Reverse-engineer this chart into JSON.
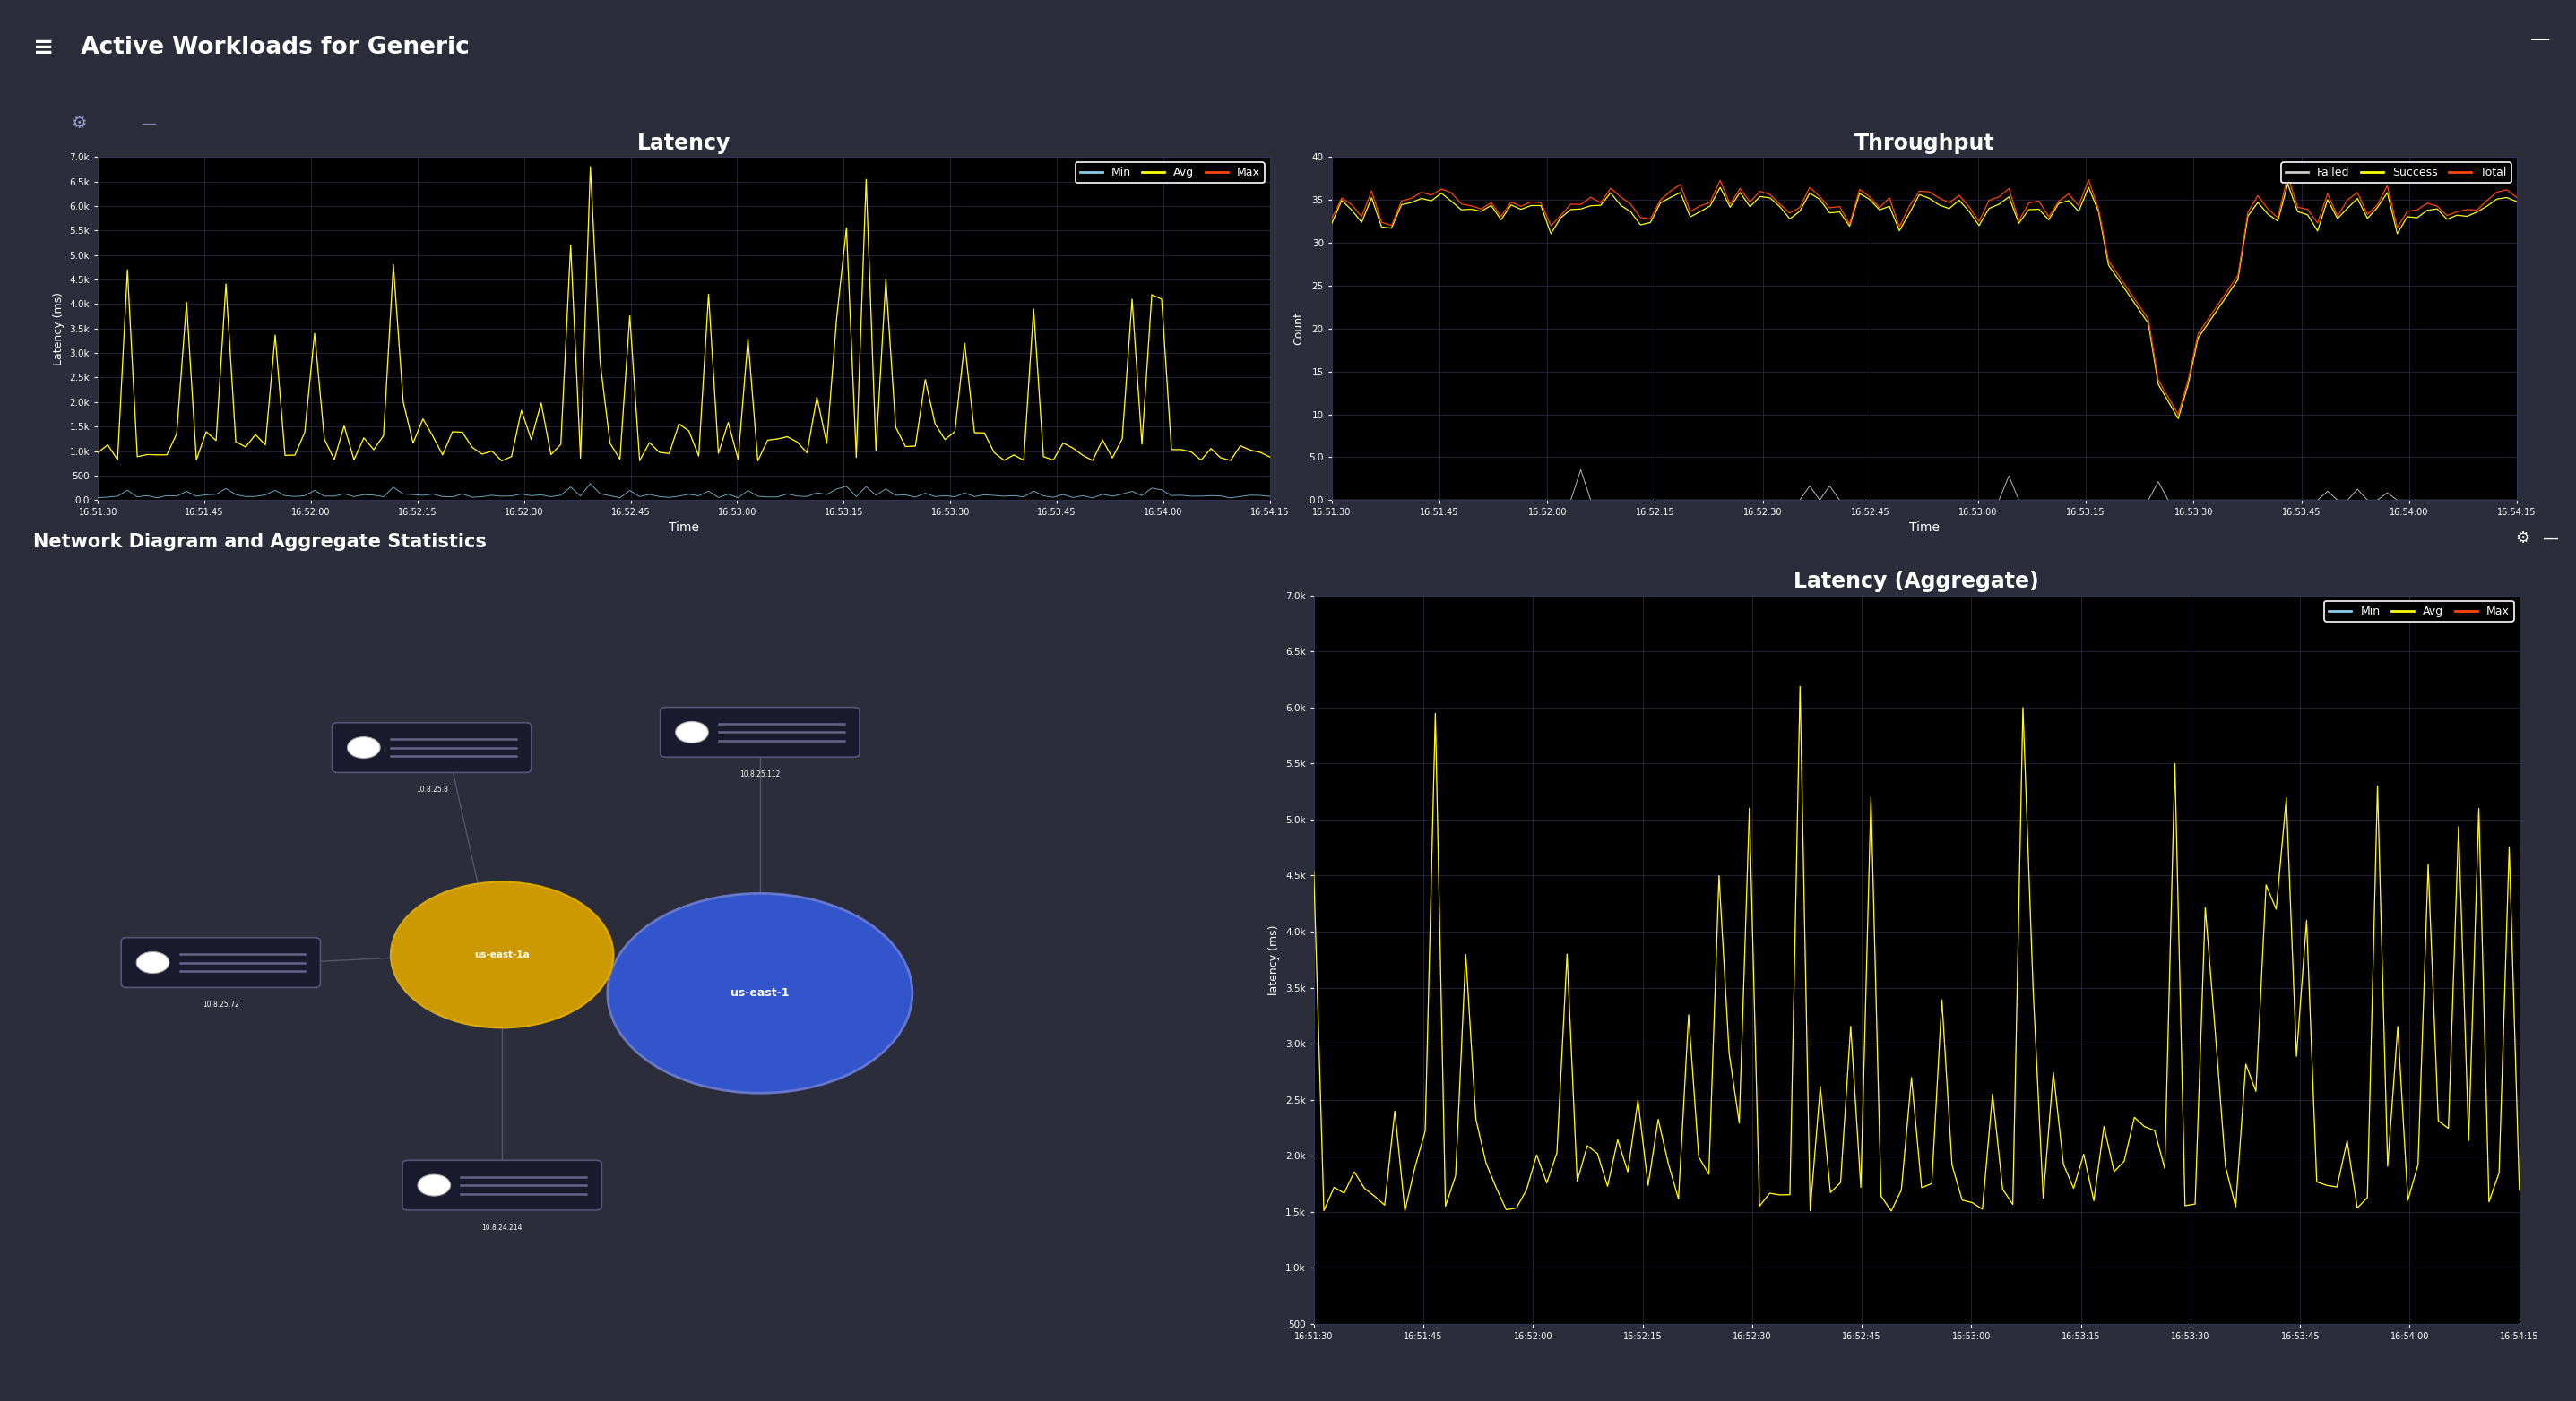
{
  "title_top": "Active Workloads for Generic",
  "title_bottom": "Network Diagram and Aggregate Statistics",
  "bg_outer": "#2b2d3b",
  "bg_header": "#1c1cb8",
  "bg_panel": "#23263a",
  "bg_chart": "#000000",
  "bg_blue_bar": "#2020bb",
  "bg_net": "#181828",
  "latency_title": "Latency",
  "latency_ylabel": "Latency (ms)",
  "latency_xlabel": "Time",
  "latency_yticks": [
    "0.0",
    "500",
    "1.0k",
    "1.5k",
    "2.0k",
    "2.5k",
    "3.0k",
    "3.5k",
    "4.0k",
    "4.5k",
    "5.0k",
    "5.5k",
    "6.0k",
    "6.5k",
    "7.0k"
  ],
  "latency_ytick_vals": [
    0,
    500,
    1000,
    1500,
    2000,
    2500,
    3000,
    3500,
    4000,
    4500,
    5000,
    5500,
    6000,
    6500,
    7000
  ],
  "latency_xticks": [
    "16:51:30",
    "16:51:45",
    "16:52:00",
    "16:52:15",
    "16:52:30",
    "16:52:45",
    "16:53:00",
    "16:53:15",
    "16:53:30",
    "16:53:45",
    "16:54:00",
    "16:54:15"
  ],
  "throughput_title": "Throughput",
  "throughput_ylabel": "Count",
  "throughput_xlabel": "Time",
  "throughput_yticks": [
    "0.0",
    "5.0",
    "10",
    "15",
    "20",
    "25",
    "30",
    "35",
    "40"
  ],
  "throughput_ytick_vals": [
    0,
    5,
    10,
    15,
    20,
    25,
    30,
    35,
    40
  ],
  "throughput_xticks": [
    "16:51:30",
    "16:51:45",
    "16:52:00",
    "16:52:15",
    "16:52:30",
    "16:52:45",
    "16:53:00",
    "16:53:15",
    "16:53:30",
    "16:53:45",
    "16:54:00",
    "16:54:15"
  ],
  "agg_title": "Latency (Aggregate)",
  "agg_ylabel": "latency (ms)",
  "agg_yticks": [
    "500",
    "1.0k",
    "1.5k",
    "2.0k",
    "2.5k",
    "3.0k",
    "3.5k",
    "4.0k",
    "4.5k",
    "5.0k",
    "5.5k",
    "6.0k",
    "6.5k",
    "7.0k"
  ],
  "agg_ytick_vals": [
    500,
    1000,
    1500,
    2000,
    2500,
    3000,
    3500,
    4000,
    4500,
    5000,
    5500,
    6000,
    6500,
    7000
  ],
  "agg_xticks": [
    "16:51:30",
    "16:51:45",
    "16:52:00",
    "16:52:15",
    "16:52:30",
    "16:52:45",
    "16:53:00",
    "16:53:15",
    "16:53:30",
    "16:53:45",
    "16:54:00",
    "16:54:15"
  ],
  "min_color": "#87ceeb",
  "avg_color": "#ffff00",
  "max_color": "#ff4500",
  "failed_color": "#cccccc",
  "success_color": "#ffff00",
  "total_color": "#ff4500",
  "grid_color": "#333355",
  "text_color": "#ffffff",
  "node_color_center": "#3355cc",
  "node_color_sub": "#cc9900",
  "node_border": "#888888",
  "node_labels": [
    "10.8.25.8",
    "10.8.25.112",
    "10.8.25.72",
    "10.8.24.214"
  ],
  "node_label_center": "us-east-1",
  "node_label_sub": "us-east-1a"
}
